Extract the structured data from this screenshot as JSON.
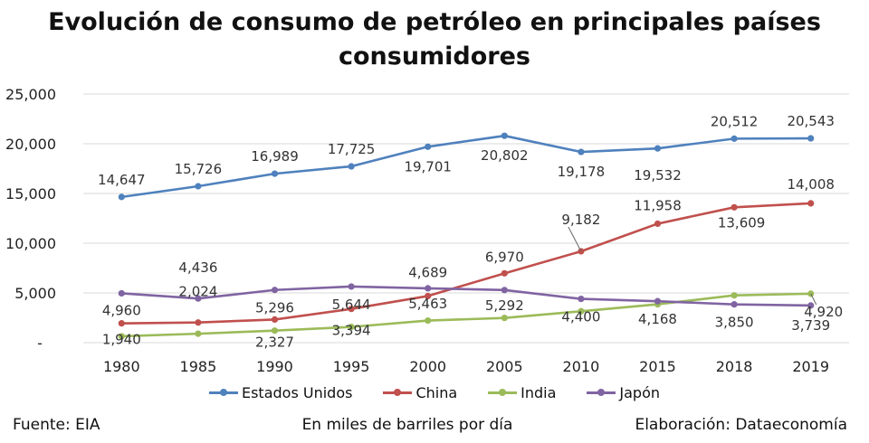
{
  "title_line1": "Evolución de consumo de petróleo en principales países",
  "title_line2": "consumidores",
  "footer": {
    "source": "Fuente: EIA",
    "units": "En miles de barriles por día",
    "credit": "Elaboración: Dataeconomía"
  },
  "chart_data": {
    "type": "line",
    "x": [
      "1980",
      "1985",
      "1990",
      "1995",
      "2000",
      "2005",
      "2010",
      "2015",
      "2018",
      "2019"
    ],
    "ylim": [
      0,
      25000
    ],
    "yticks": [
      "-",
      "5,000",
      "10,000",
      "15,000",
      "20,000",
      "25,000"
    ],
    "grid": true,
    "legend_position": "bottom",
    "series": [
      {
        "name": "Estados Unidos",
        "color": "#4f81bd",
        "values": [
          14647,
          15726,
          16989,
          17725,
          19701,
          20802,
          19178,
          19532,
          20512,
          20543
        ],
        "labels": [
          "14,647",
          "15,726",
          "16,989",
          "17,725",
          "19,701",
          "20,802",
          "19,178",
          "19,532",
          "20,512",
          "20,543"
        ]
      },
      {
        "name": "China",
        "color": "#c0504d",
        "values": [
          1940,
          2024,
          2327,
          3394,
          4689,
          6970,
          9182,
          11958,
          13609,
          14008
        ],
        "labels": [
          "1,940",
          "2,024",
          "2,327",
          "3,394",
          "4,689",
          "6,970",
          "9,182",
          "11,958",
          "13,609",
          "14,008"
        ]
      },
      {
        "name": "India",
        "color": "#9bbb59",
        "values": [
          643,
          897,
          1212,
          1579,
          2218,
          2486,
          3156,
          3855,
          4754,
          4920
        ],
        "labels": [
          "",
          "",
          "",
          "",
          "",
          "",
          "",
          "",
          "",
          "4,920"
        ]
      },
      {
        "name": "Japón",
        "color": "#8064a2",
        "values": [
          4960,
          4436,
          5296,
          5644,
          5463,
          5292,
          4400,
          4168,
          3850,
          3739
        ],
        "labels": [
          "4,960",
          "4,436",
          "5,296",
          "5,644",
          "5,463",
          "5,292",
          "4,400",
          "4,168",
          "3,850",
          "3,739"
        ]
      }
    ]
  }
}
